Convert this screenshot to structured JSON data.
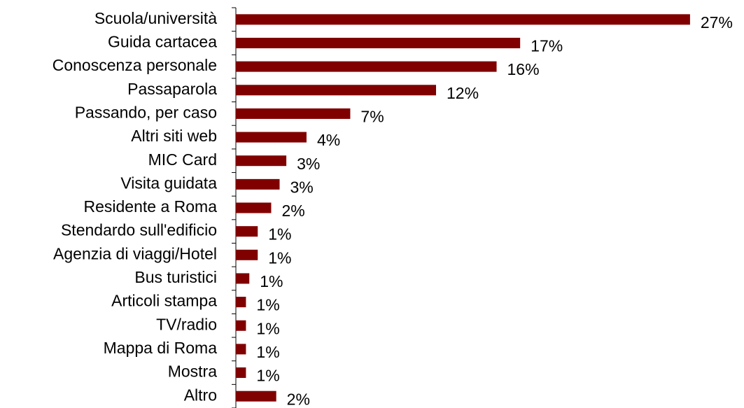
{
  "chart_data": {
    "type": "barh",
    "categories": [
      "Scuola/università",
      "Guida cartacea",
      "Conoscenza personale",
      "Passaparola",
      "Passando, per caso",
      "Altri siti web",
      "MIC Card",
      "Visita guidata",
      "Residente a Roma",
      "Stendardo sull'edificio",
      "Agenzia di viaggi/Hotel",
      "Bus turistici",
      "Articoli stampa",
      "TV/radio",
      "Mappa di Roma",
      "Mostra",
      "Altro"
    ],
    "values": [
      27,
      16.9,
      15.5,
      11.9,
      6.8,
      4.2,
      3.0,
      2.6,
      2.1,
      1.3,
      1.3,
      0.8,
      0.6,
      0.6,
      0.6,
      0.6,
      2.4
    ],
    "value_labels": [
      "27%",
      "17%",
      "16%",
      "12%",
      "7%",
      "4%",
      "3%",
      "3%",
      "2%",
      "1%",
      "1%",
      "1%",
      "1%",
      "1%",
      "1%",
      "1%",
      "2%"
    ],
    "color": "#800000",
    "xlim": [
      0,
      30
    ]
  }
}
